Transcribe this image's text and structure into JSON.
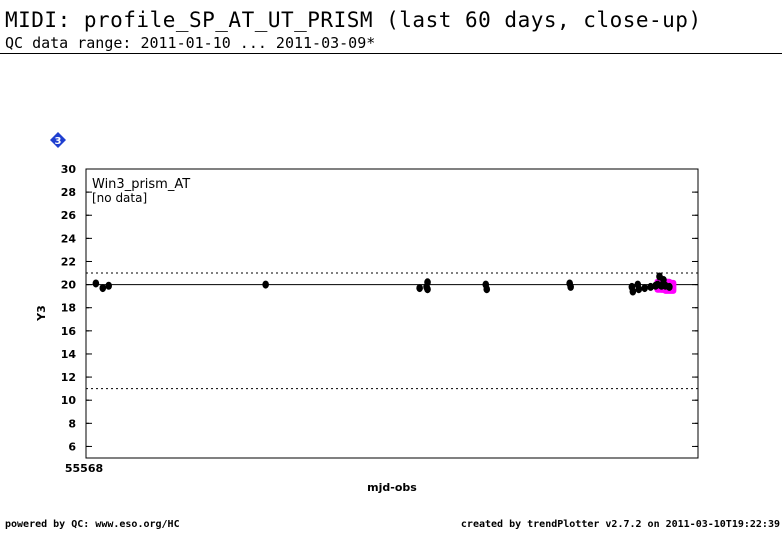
{
  "header": {
    "title": "MIDI: profile_SP_AT_UT_PRISM (last 60 days, close-up)",
    "subtitle": "QC data range: 2011-01-10 ... 2011-03-09*"
  },
  "badge": {
    "label": "3",
    "color": "#1f3fd0"
  },
  "footer": {
    "left": "powered by QC: www.eso.org/HC",
    "right": "created by trendPlotter v2.7.2 on 2011-03-10T19:22:39"
  },
  "chart_data": {
    "type": "scatter",
    "panel_label": "Win3_prism_AT",
    "panel_note": "[no data]",
    "xlabel": "mjd-obs",
    "ylabel": "Y3",
    "x_tick_label": "55568",
    "xlim": [
      55568,
      55630
    ],
    "ylim": [
      5,
      30
    ],
    "yticks": [
      6,
      8,
      10,
      12,
      14,
      16,
      18,
      20,
      22,
      24,
      26,
      28,
      30
    ],
    "reference_line": 20,
    "threshold_lines": [
      11,
      21
    ],
    "colors": {
      "points": "#000000",
      "highlight": "#ff00ff"
    },
    "points": [
      {
        "x": 55569.0,
        "y": 20.1
      },
      {
        "x": 55569.7,
        "y": 19.7
      },
      {
        "x": 55570.3,
        "y": 19.9
      },
      {
        "x": 55586.2,
        "y": 20.0
      },
      {
        "x": 55601.8,
        "y": 19.7
      },
      {
        "x": 55602.5,
        "y": 19.8
      },
      {
        "x": 55602.6,
        "y": 20.2
      },
      {
        "x": 55602.6,
        "y": 19.6
      },
      {
        "x": 55608.5,
        "y": 20.0
      },
      {
        "x": 55608.6,
        "y": 19.6
      },
      {
        "x": 55617.0,
        "y": 20.1
      },
      {
        "x": 55617.1,
        "y": 19.8
      },
      {
        "x": 55623.3,
        "y": 19.8
      },
      {
        "x": 55623.4,
        "y": 19.4
      },
      {
        "x": 55623.9,
        "y": 20.0
      },
      {
        "x": 55624.0,
        "y": 19.6
      },
      {
        "x": 55624.6,
        "y": 19.7
      },
      {
        "x": 55625.2,
        "y": 19.8
      },
      {
        "x": 55625.7,
        "y": 19.9
      },
      {
        "x": 55625.9,
        "y": 20.0
      },
      {
        "x": 55626.1,
        "y": 20.7
      },
      {
        "x": 55626.5,
        "y": 20.4
      }
    ],
    "highlight_points": [
      {
        "x": 55626.3,
        "y": 19.9
      },
      {
        "x": 55626.7,
        "y": 19.9
      },
      {
        "x": 55627.1,
        "y": 19.8
      }
    ]
  }
}
